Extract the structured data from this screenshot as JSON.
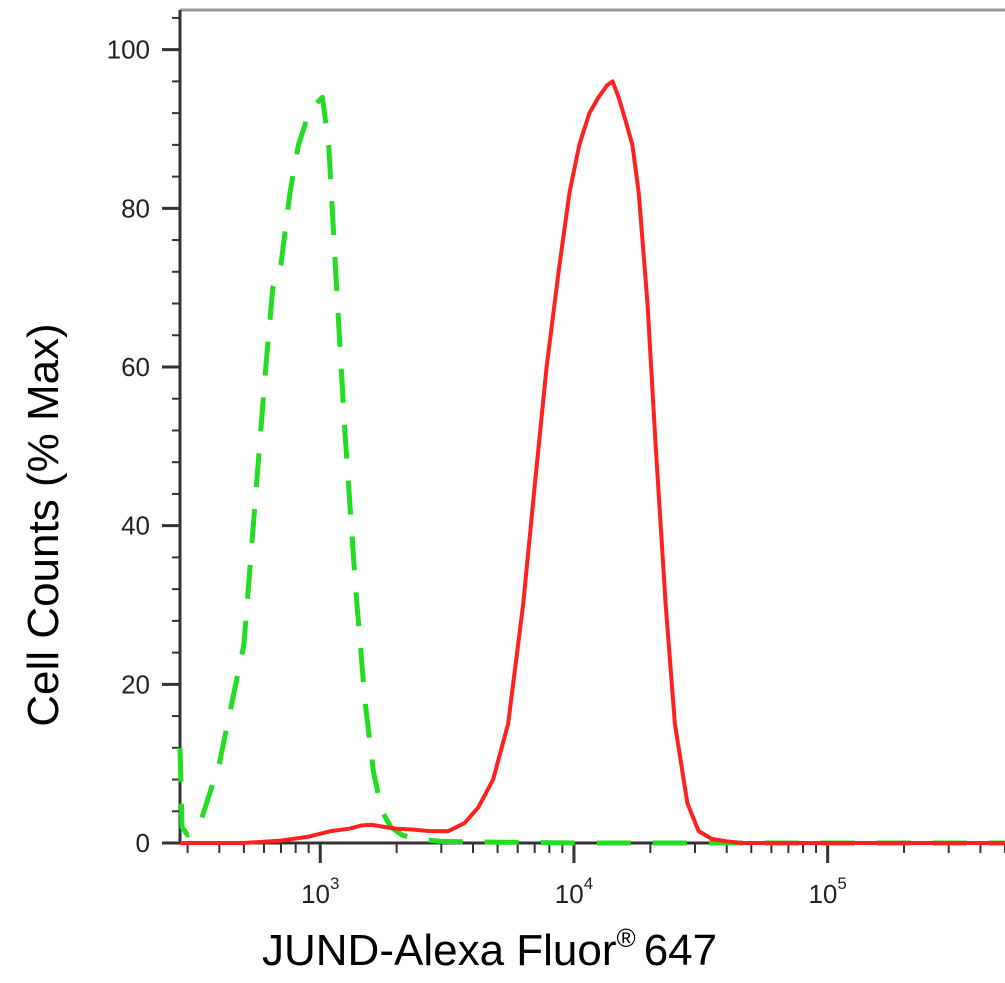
{
  "chart_data": {
    "type": "line",
    "xlabel": "JUND-Alexa Fluor",
    "xlabel_superscript": "®",
    "xlabel_suffix": "647",
    "ylabel": "Cell Counts (% Max)",
    "x_scale": "log",
    "xlim": [
      280,
      500000
    ],
    "ylim": [
      0,
      105
    ],
    "y_ticks": [
      0,
      20,
      40,
      60,
      80,
      100
    ],
    "x_ticks": [
      {
        "value": 1000,
        "base": "10",
        "exp": "3"
      },
      {
        "value": 10000,
        "base": "10",
        "exp": "4"
      },
      {
        "value": 100000,
        "base": "10",
        "exp": "5"
      }
    ],
    "grid": false,
    "series": [
      {
        "style": "dashed",
        "color": "#22dd22",
        "x": [
          280,
          285,
          300,
          340,
          400,
          500,
          560,
          610,
          650,
          700,
          760,
          820,
          880,
          950,
          1020,
          1080,
          1150,
          1250,
          1380,
          1500,
          1620,
          1750,
          1900,
          2100,
          2400,
          3000,
          5000,
          10000,
          50000,
          500000
        ],
        "y": [
          12,
          2,
          1,
          3,
          10,
          25,
          45,
          60,
          70,
          73,
          82,
          88,
          91,
          93,
          94,
          88,
          72,
          52,
          32,
          18,
          9,
          4,
          2,
          1,
          0.5,
          0.2,
          0.1,
          0,
          0,
          0
        ]
      },
      {
        "style": "solid",
        "color": "#ff2020",
        "x": [
          280,
          500,
          700,
          900,
          1100,
          1300,
          1450,
          1600,
          1800,
          2000,
          2300,
          2700,
          3200,
          3700,
          4200,
          4800,
          5500,
          6300,
          7000,
          7800,
          8700,
          9600,
          10500,
          11500,
          12500,
          13500,
          14200,
          15000,
          16000,
          17000,
          18000,
          19500,
          21000,
          23000,
          25000,
          28000,
          31000,
          35000,
          40000,
          46000,
          60000,
          100000,
          500000
        ],
        "y": [
          0,
          0,
          0.3,
          0.8,
          1.5,
          1.8,
          2.2,
          2.3,
          2,
          1.8,
          1.7,
          1.5,
          1.5,
          2.5,
          4.5,
          8,
          15,
          30,
          45,
          60,
          72,
          82,
          88,
          92,
          94,
          95.5,
          96,
          94,
          91,
          88,
          82,
          68,
          50,
          30,
          15,
          5,
          1.5,
          0.5,
          0.2,
          0,
          0,
          0,
          0
        ]
      }
    ]
  }
}
